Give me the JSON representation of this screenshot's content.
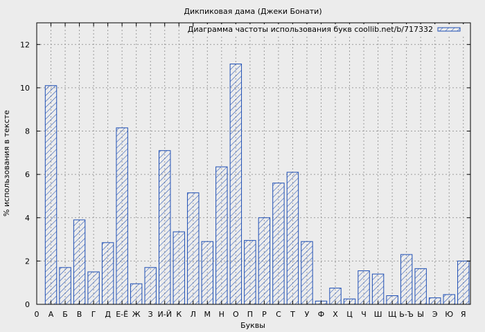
{
  "chart_data": {
    "type": "bar",
    "title": "Дикпиковая дама (Джеки Бонати)",
    "xlabel": "Буквы",
    "ylabel": "% использования в тексте",
    "legend": {
      "label": "Диаграмма частоты использования букв coollib.net/b/717332",
      "position": "top-right"
    },
    "grid": true,
    "ylim": [
      0,
      13
    ],
    "yticks": [
      0,
      2,
      4,
      6,
      8,
      10,
      12
    ],
    "x_start_label": "0",
    "categories": [
      "А",
      "Б",
      "В",
      "Г",
      "Д",
      "Е-Ё",
      "Ж",
      "З",
      "И-Й",
      "К",
      "Л",
      "М",
      "Н",
      "О",
      "П",
      "Р",
      "С",
      "Т",
      "У",
      "Ф",
      "Х",
      "Ц",
      "Ч",
      "Ш",
      "Щ",
      "Ь-Ъ",
      "Ы",
      "Э",
      "Ю",
      "Я"
    ],
    "values": [
      10.1,
      1.7,
      3.9,
      1.5,
      2.85,
      8.15,
      0.95,
      1.7,
      7.1,
      3.35,
      5.15,
      2.9,
      6.35,
      11.1,
      2.95,
      4.0,
      5.6,
      6.1,
      2.9,
      0.15,
      0.75,
      0.25,
      1.55,
      1.4,
      0.4,
      2.3,
      1.65,
      0.3,
      0.45,
      2.0
    ],
    "colors": {
      "bar": "#1f4fb4",
      "plot_bg": "#ececec",
      "grid": "#9a9a9a"
    }
  }
}
